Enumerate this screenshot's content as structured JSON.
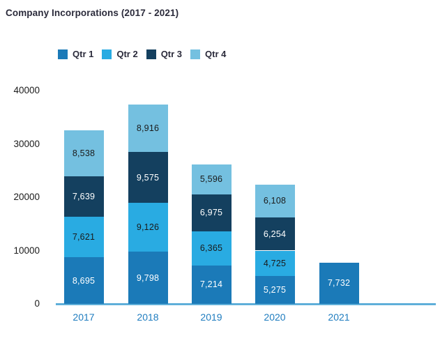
{
  "title": "Company Incorporations (2017 - 2021)",
  "styles": {
    "title_color": "#2B2B3B",
    "legend_text_color": "#2B2B3B",
    "axis_text_color": "#1A1A1A",
    "year_label_color": "#1E7CBF",
    "axis_line_color": "#5FAFD9",
    "label_dark": "#1A1A1A",
    "label_light": "#FFFFFF"
  },
  "chart_data": {
    "type": "bar",
    "stacked": true,
    "title": "Company Incorporations (2017 - 2021)",
    "categories": [
      "2017",
      "2018",
      "2019",
      "2020",
      "2021"
    ],
    "series": [
      {
        "name": "Qtr 1",
        "color": "#1B7AB8",
        "values": [
          8695,
          9798,
          7214,
          5275,
          7732
        ]
      },
      {
        "name": "Qtr 2",
        "color": "#29ABE2",
        "values": [
          7621,
          9126,
          6365,
          4725,
          null
        ]
      },
      {
        "name": "Qtr 3",
        "color": "#14405F",
        "values": [
          7639,
          9575,
          6975,
          6254,
          null
        ]
      },
      {
        "name": "Qtr 4",
        "color": "#74C0E0",
        "values": [
          8538,
          8916,
          5596,
          6108,
          null
        ]
      }
    ],
    "totals": [
      32493,
      37415,
      26150,
      22362,
      7732
    ],
    "ylim": [
      0,
      40000
    ],
    "yticks": [
      0,
      10000,
      20000,
      30000,
      40000
    ],
    "legend_position": "top",
    "grid": false,
    "value_labels": "inside",
    "xlabel": "",
    "ylabel": ""
  }
}
